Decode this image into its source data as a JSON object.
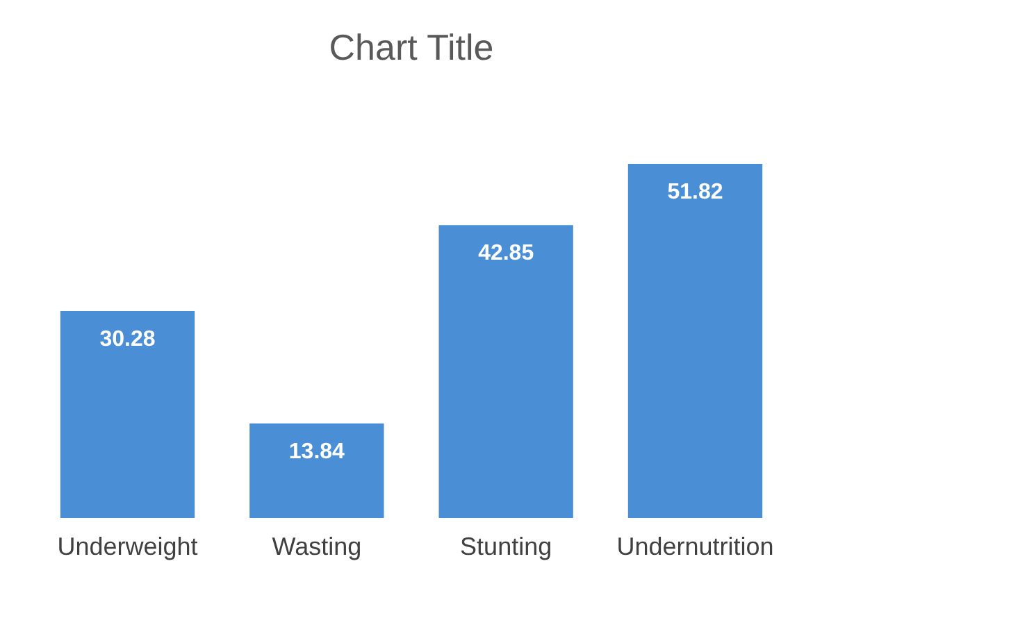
{
  "chart_data": {
    "type": "bar",
    "title": "Chart Title",
    "categories": [
      "Underweight",
      "Wasting",
      "Stunting",
      "Undernutrition"
    ],
    "values": [
      30.28,
      13.84,
      42.85,
      51.82
    ],
    "color": "#4a8fd6",
    "data_labels": true
  }
}
